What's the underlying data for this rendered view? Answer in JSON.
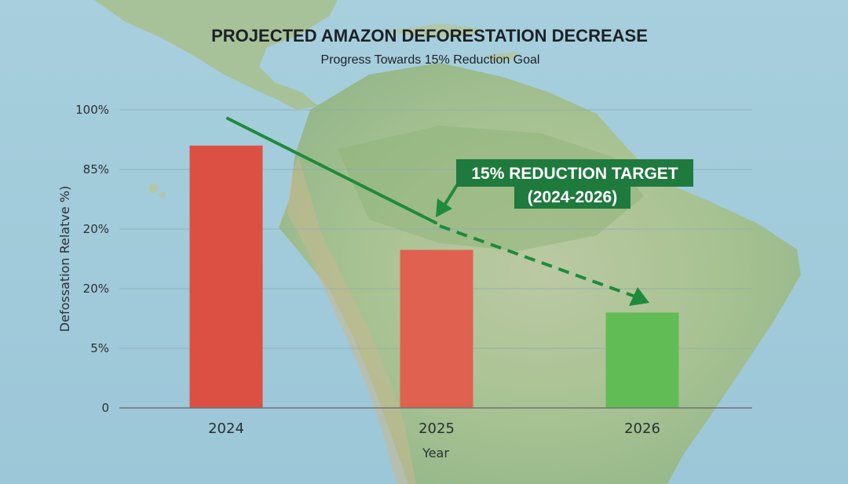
{
  "chart_data": {
    "type": "bar",
    "title": "PROJECTED AMAZON DEFORESTATION DECREASE",
    "subtitle": "Progress Towards 15% Reduction Goal",
    "xlabel": "Year",
    "ylabel": "Defossation Relatve %)",
    "categories": [
      "2024",
      "2025",
      "2026"
    ],
    "values": [
      88,
      53,
      32
    ],
    "bar_colors": [
      "#dc4f43",
      "#e0614f",
      "#62bc55"
    ],
    "y_tick_labels": [
      "100%",
      "85%",
      "20%",
      "20%",
      "5%",
      "0"
    ],
    "grid": true,
    "annotation": {
      "line1": "15% REDUCTION TARGET",
      "line2": "(2024-2026)",
      "color": "#1f7a3e"
    },
    "background": "map-of-south-america"
  }
}
